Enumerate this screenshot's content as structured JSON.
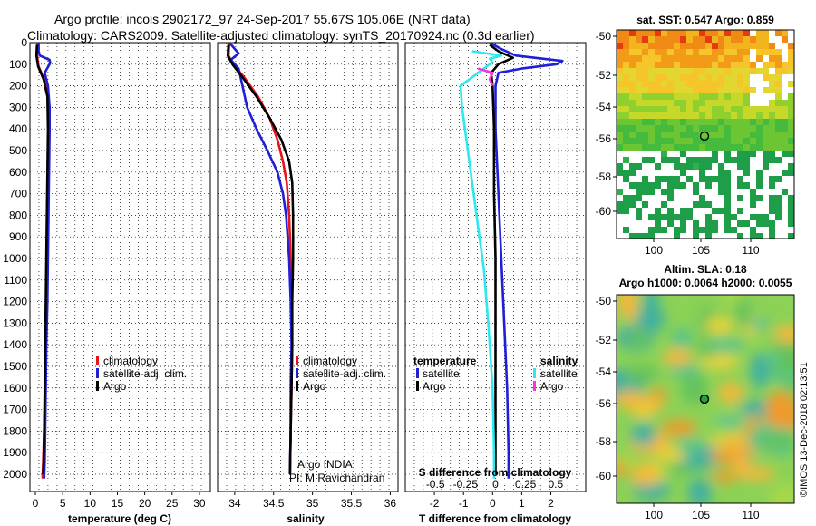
{
  "header": {
    "title_line1": "Argo profile: incois 2902172_97 24-Sep-2017 55.67S 105.06E (NRT data)",
    "title_line2": "Climatology: CARS2009. Satellite-adjusted climatology: synTS_20170924.nc (0.3d earlier)"
  },
  "colors": {
    "climatology": "#e8141c",
    "satellite": "#1f1fd8",
    "argo": "#000000",
    "sat_temperature": "#2ee8f0",
    "sat_salinity": "#ff2ee0"
  },
  "credit": {
    "line1": "Argo INDIA",
    "line2": "PI: M Ravichandran",
    "imos": "©IMOS 13-Dec-2018 02:13:51"
  },
  "chart_data": [
    {
      "id": "temperature",
      "type": "line",
      "xlabel": "temperature (deg C)",
      "ylabel": "depth",
      "xlim": [
        -1,
        32
      ],
      "ylim": [
        2080,
        0
      ],
      "xticks": [
        0,
        5,
        10,
        15,
        20,
        25,
        30
      ],
      "yticks": [
        0,
        100,
        200,
        300,
        400,
        500,
        600,
        700,
        800,
        900,
        1000,
        1100,
        1200,
        1300,
        1400,
        1500,
        1600,
        1700,
        1800,
        1900,
        2000
      ],
      "legend": {
        "position": "lower-right",
        "entries": [
          "climatology",
          "satellite-adj. clim.",
          "Argo"
        ]
      },
      "series": [
        {
          "name": "climatology",
          "color_key": "climatology",
          "points": [
            [
              0.4,
              0
            ],
            [
              0.3,
              60
            ],
            [
              0.6,
              110
            ],
            [
              1.6,
              170
            ],
            [
              2.3,
              250
            ],
            [
              2.4,
              400
            ],
            [
              2.3,
              600
            ],
            [
              2.2,
              800
            ],
            [
              2.1,
              1000
            ],
            [
              2.0,
              1200
            ],
            [
              1.9,
              1400
            ],
            [
              1.8,
              1600
            ],
            [
              1.6,
              1800
            ],
            [
              1.4,
              1950
            ],
            [
              1.3,
              2020
            ]
          ]
        },
        {
          "name": "satellite-adj. clim.",
          "color_key": "satellite",
          "points": [
            [
              0.6,
              0
            ],
            [
              0.6,
              40
            ],
            [
              0.8,
              60
            ],
            [
              2.6,
              80
            ],
            [
              2.7,
              95
            ],
            [
              1.7,
              140
            ],
            [
              2.3,
              200
            ],
            [
              2.6,
              300
            ],
            [
              2.6,
              400
            ],
            [
              2.5,
              600
            ],
            [
              2.4,
              800
            ],
            [
              2.3,
              1000
            ],
            [
              2.2,
              1200
            ],
            [
              2.0,
              1400
            ],
            [
              1.9,
              1600
            ],
            [
              1.8,
              1800
            ],
            [
              1.7,
              1950
            ],
            [
              1.6,
              2020
            ]
          ]
        },
        {
          "name": "Argo",
          "color_key": "argo",
          "points": [
            [
              0.3,
              10
            ],
            [
              0.2,
              60
            ],
            [
              0.5,
              110
            ],
            [
              1.5,
              170
            ],
            [
              2.2,
              250
            ],
            [
              2.3,
              400
            ],
            [
              2.2,
              600
            ],
            [
              2.1,
              800
            ],
            [
              2.0,
              1000
            ],
            [
              1.9,
              1200
            ],
            [
              1.8,
              1400
            ],
            [
              1.7,
              1600
            ],
            [
              1.6,
              1800
            ],
            [
              1.5,
              1950
            ],
            [
              1.4,
              2000
            ]
          ]
        }
      ]
    },
    {
      "id": "salinity",
      "type": "line",
      "xlabel": "salinity",
      "ylabel": "depth",
      "xlim": [
        33.78,
        36.1
      ],
      "ylim": [
        2080,
        0
      ],
      "xticks": [
        34,
        34.5,
        35,
        35.5,
        36
      ],
      "legend": {
        "position": "lower-left",
        "entries": [
          "climatology",
          "satellite-adj. clim.",
          "Argo"
        ]
      },
      "series": [
        {
          "name": "climatology",
          "color_key": "climatology",
          "points": [
            [
              33.93,
              0
            ],
            [
              33.92,
              60
            ],
            [
              33.98,
              100
            ],
            [
              34.12,
              160
            ],
            [
              34.3,
              250
            ],
            [
              34.45,
              350
            ],
            [
              34.55,
              450
            ],
            [
              34.62,
              550
            ],
            [
              34.67,
              650
            ],
            [
              34.7,
              800
            ],
            [
              34.72,
              1000
            ],
            [
              34.73,
              1200
            ],
            [
              34.74,
              1400
            ],
            [
              34.73,
              1600
            ],
            [
              34.72,
              1800
            ],
            [
              34.71,
              2000
            ]
          ]
        },
        {
          "name": "satellite-adj. clim.",
          "color_key": "satellite",
          "points": [
            [
              33.93,
              0
            ],
            [
              34.05,
              50
            ],
            [
              33.95,
              80
            ],
            [
              34.05,
              120
            ],
            [
              34.1,
              200
            ],
            [
              34.16,
              300
            ],
            [
              34.28,
              400
            ],
            [
              34.42,
              500
            ],
            [
              34.55,
              600
            ],
            [
              34.62,
              700
            ],
            [
              34.66,
              800
            ],
            [
              34.7,
              1000
            ],
            [
              34.72,
              1200
            ],
            [
              34.73,
              1400
            ],
            [
              34.72,
              1600
            ],
            [
              34.72,
              1800
            ],
            [
              34.71,
              2000
            ]
          ]
        },
        {
          "name": "Argo",
          "color_key": "argo",
          "points": [
            [
              33.92,
              10
            ],
            [
              33.91,
              60
            ],
            [
              33.97,
              100
            ],
            [
              34.1,
              160
            ],
            [
              34.28,
              250
            ],
            [
              34.45,
              350
            ],
            [
              34.6,
              450
            ],
            [
              34.7,
              550
            ],
            [
              34.74,
              650
            ],
            [
              34.75,
              800
            ],
            [
              34.75,
              1000
            ],
            [
              34.74,
              1200
            ],
            [
              34.74,
              1400
            ],
            [
              34.73,
              1600
            ],
            [
              34.72,
              1800
            ],
            [
              34.71,
              2000
            ]
          ]
        }
      ]
    },
    {
      "id": "differences",
      "type": "line",
      "xlabel": "T difference from climatology",
      "x2label": "S difference from climatology",
      "xlim": [
        -3,
        3.2
      ],
      "x2ticks": [
        -0.5,
        -0.25,
        0,
        0.25,
        0.5
      ],
      "x2ticklabels": [
        "-0.5",
        "-0.25",
        "0",
        "0.25",
        "0.5"
      ],
      "ylim": [
        2080,
        0
      ],
      "xticks": [
        -2,
        -1,
        0,
        1,
        2
      ],
      "legend": {
        "position": "lower",
        "temperature_title": "temperature",
        "salinity_title": "salinity",
        "temperature_entries": [
          "satellite",
          "Argo"
        ],
        "salinity_entries": [
          "satellite",
          "Argo"
        ]
      },
      "series": [
        {
          "name": "T satellite",
          "color_key": "satellite",
          "points": [
            [
              -0.1,
              0
            ],
            [
              0.3,
              30
            ],
            [
              0.8,
              60
            ],
            [
              2.4,
              85
            ],
            [
              2.2,
              100
            ],
            [
              1.0,
              120
            ],
            [
              0.2,
              140
            ],
            [
              0.1,
              200
            ],
            [
              0.1,
              400
            ],
            [
              0.2,
              700
            ],
            [
              0.3,
              1000
            ],
            [
              0.4,
              1300
            ],
            [
              0.5,
              1600
            ],
            [
              0.55,
              1900
            ],
            [
              0.55,
              2020
            ]
          ]
        },
        {
          "name": "T Argo",
          "color_key": "argo",
          "points": [
            [
              -0.1,
              10
            ],
            [
              0.2,
              40
            ],
            [
              0.7,
              70
            ],
            [
              0.2,
              100
            ],
            [
              -0.05,
              140
            ],
            [
              0.0,
              200
            ],
            [
              0.05,
              400
            ],
            [
              0.05,
              700
            ],
            [
              0.1,
              1000
            ],
            [
              0.1,
              1300
            ],
            [
              0.1,
              1600
            ],
            [
              0.1,
              1900
            ],
            [
              0.1,
              2000
            ]
          ]
        },
        {
          "name": "S satellite",
          "color_key": "sat_temperature",
          "points": [
            [
              -0.7,
              40
            ],
            [
              0.3,
              60
            ],
            [
              -0.1,
              75
            ],
            [
              0.0,
              90
            ],
            [
              -0.4,
              130
            ],
            [
              -1.1,
              200
            ],
            [
              -1.05,
              300
            ],
            [
              -0.9,
              450
            ],
            [
              -0.7,
              650
            ],
            [
              -0.5,
              850
            ],
            [
              -0.3,
              1050
            ],
            [
              -0.15,
              1300
            ],
            [
              0.0,
              1600
            ],
            [
              0.05,
              1900
            ],
            [
              0.05,
              2020
            ]
          ]
        },
        {
          "name": "S Argo",
          "color_key": "sat_salinity",
          "points": [
            [
              -0.5,
              120
            ],
            [
              0.0,
              140
            ],
            [
              -0.1,
              170
            ],
            [
              0.0,
              200
            ]
          ]
        }
      ]
    }
  ],
  "maps": {
    "sst": {
      "title": "sat. SST: 0.547 Argo: 0.859",
      "yticks": [
        "-50",
        "-52",
        "-54",
        "-56",
        "-58",
        "-60"
      ],
      "xticks": [
        "100",
        "105",
        "110"
      ]
    },
    "sla": {
      "title_line1": "Altim. SLA: 0.18",
      "title_line2": "Argo h1000: 0.0064 h2000: 0.0055",
      "yticks": [
        "-50",
        "-52",
        "-54",
        "-56",
        "-58",
        "-60"
      ],
      "xticks": [
        "100",
        "105",
        "110"
      ]
    }
  }
}
